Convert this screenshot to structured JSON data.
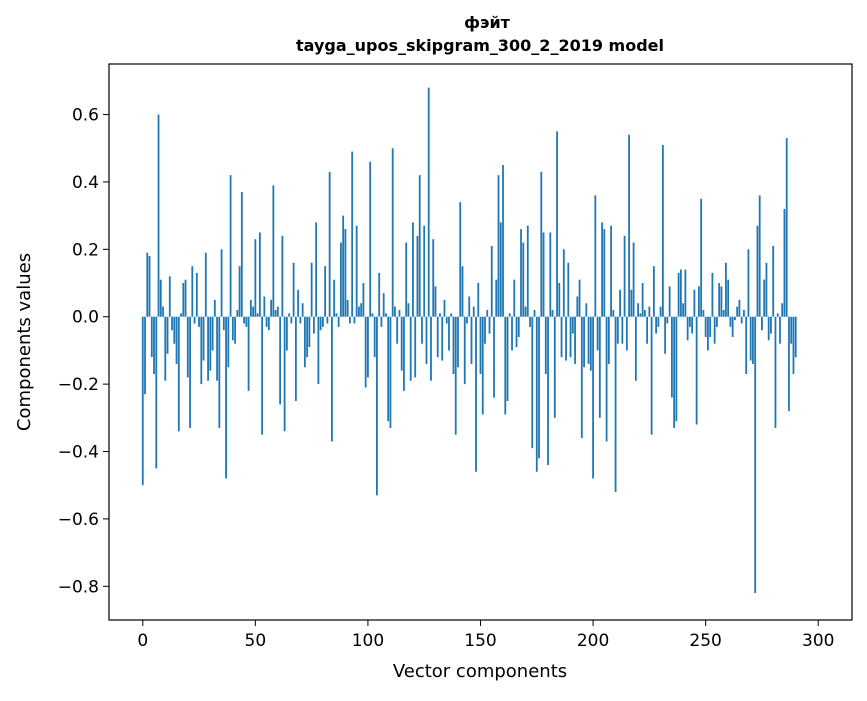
{
  "chart_data": {
    "type": "bar",
    "title": "фэйт",
    "subtitle": "tayga_upos_skipgram_300_2_2019 model",
    "xlabel": "Vector components",
    "ylabel": "Components values",
    "xlim": [
      -15,
      315
    ],
    "ylim": [
      -0.9,
      0.75
    ],
    "xticks": [
      0,
      50,
      100,
      150,
      200,
      250,
      300
    ],
    "yticks": [
      -0.8,
      -0.6,
      -0.4,
      -0.2,
      0.0,
      0.2,
      0.4,
      0.6
    ],
    "ytick_labels": [
      "−0.8",
      "−0.6",
      "−0.4",
      "−0.2",
      "0.0",
      "0.2",
      "0.4",
      "0.6"
    ],
    "bar_color": "#1f77b4",
    "values": [
      -0.5,
      -0.23,
      0.19,
      0.18,
      -0.12,
      -0.17,
      -0.45,
      0.6,
      0.11,
      0.03,
      -0.19,
      -0.11,
      0.12,
      -0.04,
      -0.08,
      -0.14,
      -0.34,
      0.01,
      0.1,
      0.11,
      -0.18,
      -0.33,
      0.15,
      -0.02,
      0.13,
      -0.03,
      -0.2,
      -0.13,
      0.19,
      -0.19,
      -0.16,
      -0.1,
      0.05,
      -0.19,
      -0.33,
      0.2,
      -0.04,
      -0.48,
      -0.15,
      0.42,
      -0.07,
      -0.08,
      0.02,
      0.15,
      0.37,
      -0.02,
      -0.03,
      -0.22,
      0.05,
      0.03,
      0.23,
      0.01,
      0.25,
      -0.35,
      0.06,
      -0.03,
      -0.04,
      0.05,
      0.39,
      0.02,
      0.03,
      -0.26,
      0.24,
      -0.34,
      -0.1,
      0.01,
      -0.02,
      0.16,
      -0.25,
      0.08,
      -0.02,
      0.04,
      -0.15,
      -0.12,
      -0.09,
      0.16,
      -0.05,
      0.28,
      -0.2,
      -0.04,
      -0.03,
      0.15,
      -0.02,
      0.43,
      -0.37,
      0.11,
      0.01,
      -0.03,
      0.22,
      0.3,
      0.26,
      0.05,
      -0.02,
      0.49,
      -0.02,
      0.27,
      0.03,
      0.04,
      0.1,
      -0.21,
      -0.18,
      0.46,
      0.01,
      -0.12,
      -0.53,
      0.13,
      -0.03,
      0.07,
      0.01,
      -0.31,
      -0.33,
      0.5,
      0.03,
      -0.08,
      0.02,
      -0.16,
      -0.22,
      0.22,
      0.04,
      -0.19,
      0.28,
      -0.18,
      0.24,
      0.42,
      -0.08,
      0.27,
      -0.14,
      0.68,
      -0.19,
      0.23,
      0.09,
      -0.12,
      0.01,
      -0.13,
      0.05,
      -0.02,
      -0.1,
      0.01,
      -0.17,
      -0.35,
      -0.15,
      0.34,
      0.15,
      -0.2,
      -0.02,
      0.06,
      -0.14,
      0.03,
      -0.46,
      0.1,
      -0.17,
      -0.29,
      -0.08,
      0.02,
      -0.05,
      0.21,
      -0.24,
      0.11,
      0.42,
      0.28,
      0.45,
      -0.29,
      -0.25,
      0.01,
      -0.1,
      0.11,
      -0.09,
      -0.06,
      0.26,
      0.22,
      0.03,
      0.27,
      -0.03,
      -0.39,
      0.02,
      -0.46,
      -0.42,
      0.43,
      0.25,
      -0.17,
      -0.44,
      0.25,
      0.02,
      -0.3,
      0.55,
      0.1,
      -0.12,
      0.2,
      -0.13,
      0.16,
      -0.12,
      -0.05,
      -0.14,
      0.06,
      0.11,
      -0.36,
      -0.15,
      0.04,
      -0.14,
      -0.16,
      -0.48,
      0.36,
      -0.1,
      -0.3,
      0.28,
      0.26,
      -0.37,
      -0.14,
      0.27,
      0.02,
      -0.52,
      -0.08,
      0.08,
      -0.08,
      0.24,
      -0.1,
      0.54,
      0.08,
      0.22,
      -0.19,
      0.04,
      0.01,
      0.1,
      0.02,
      -0.08,
      0.03,
      -0.35,
      0.15,
      -0.05,
      -0.03,
      0.03,
      0.51,
      -0.11,
      -0.02,
      0.09,
      -0.24,
      -0.33,
      -0.31,
      0.13,
      0.14,
      0.04,
      0.14,
      -0.07,
      -0.03,
      -0.05,
      0.08,
      -0.32,
      0.09,
      0.35,
      0.02,
      -0.06,
      -0.1,
      -0.06,
      0.13,
      -0.08,
      -0.03,
      0.1,
      0.09,
      0.02,
      0.16,
      0.11,
      -0.03,
      -0.06,
      -0.01,
      0.03,
      0.05,
      -0.02,
      0.02,
      -0.17,
      0.2,
      -0.13,
      -0.14,
      -0.82,
      0.27,
      0.36,
      -0.04,
      0.11,
      0.16,
      -0.07,
      -0.05,
      0.21,
      -0.33,
      0.01,
      -0.08,
      0.04,
      0.32,
      0.53,
      -0.28,
      -0.08,
      -0.17,
      -0.12
    ]
  }
}
